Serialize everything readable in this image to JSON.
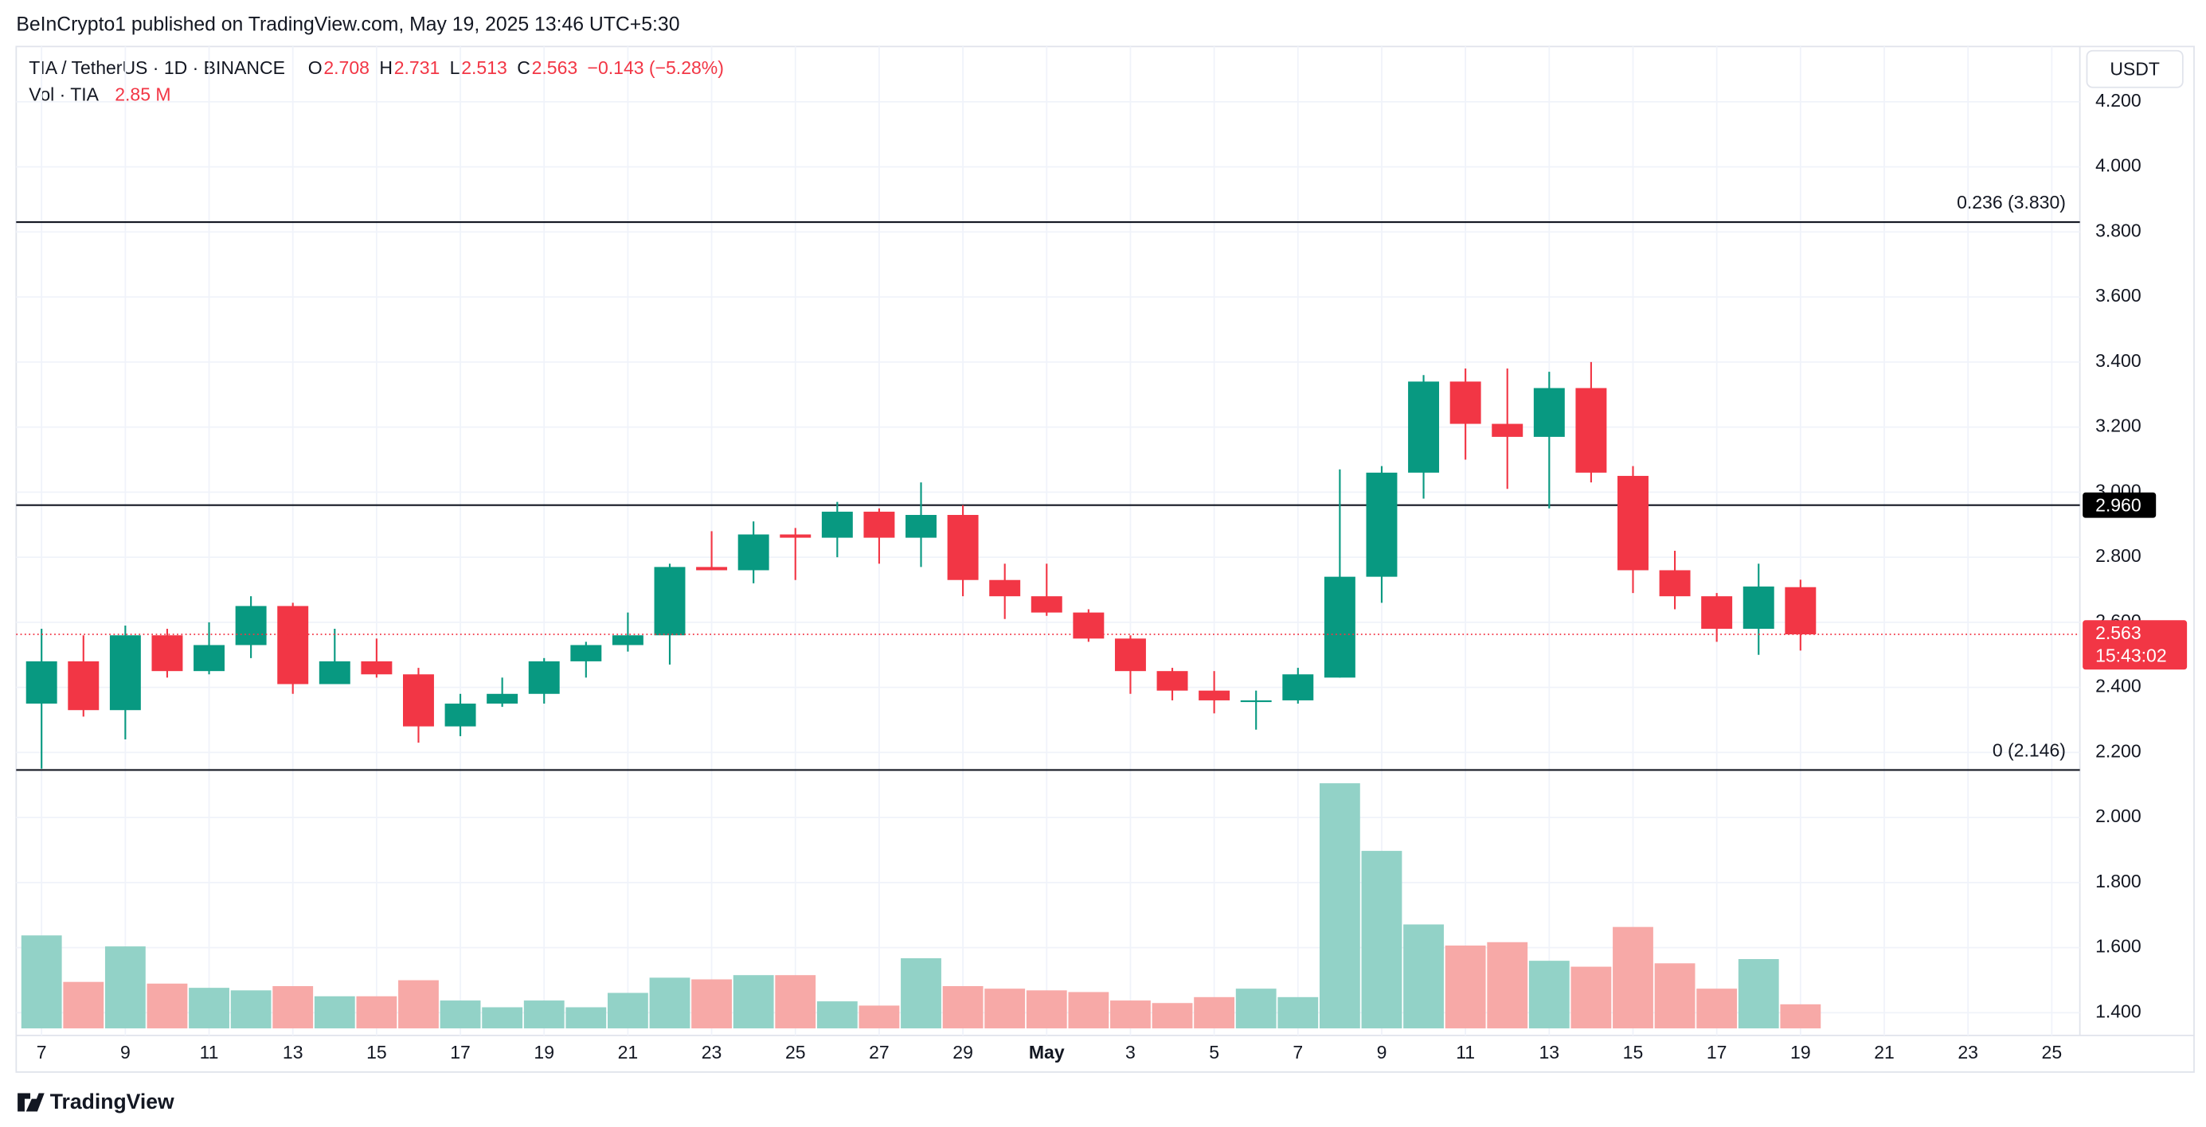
{
  "header": {
    "publisher": "BeInCrypto1 published on TradingView.com, May 19, 2025 13:46 UTC+5:30"
  },
  "footer": {
    "brand": "TradingView"
  },
  "chart_data": {
    "type": "candlestick",
    "symbol": "TIA / TetherUS · 1D · BINANCE",
    "legend": {
      "o": "O",
      "h": "H",
      "l": "L",
      "c": "C",
      "change": "−0.143 (−5.28%)",
      "vol": "Vol · TIA",
      "vol_label": "2.85 M"
    },
    "currency": "USDT",
    "up_color": "#089981",
    "down_color": "#f23645",
    "up_volume_color": "#92d2c7",
    "down_volume_color": "#f7a9a7",
    "categories": [
      "7",
      null,
      "9",
      null,
      "11",
      null,
      "13",
      null,
      "15",
      null,
      "17",
      null,
      "19",
      null,
      "21",
      null,
      "23",
      null,
      "25",
      null,
      "27",
      null,
      "29",
      null,
      "May",
      null,
      "3",
      null,
      "5",
      null,
      "7",
      null,
      "9",
      null,
      "11",
      null,
      "13",
      null,
      "15",
      null,
      "17",
      null,
      "19",
      null,
      "21",
      null,
      "23",
      null,
      "25"
    ],
    "open": [
      2.35,
      2.48,
      2.33,
      2.56,
      2.45,
      2.53,
      2.65,
      2.41,
      2.48,
      2.44,
      2.28,
      2.35,
      2.38,
      2.48,
      2.53,
      2.56,
      2.77,
      2.76,
      2.87,
      2.86,
      2.94,
      2.86,
      2.93,
      2.73,
      2.68,
      2.63,
      2.55,
      2.45,
      2.39,
      2.36,
      2.36,
      2.43,
      2.74,
      3.06,
      3.34,
      3.21,
      3.17,
      3.32,
      3.05,
      2.76,
      2.68,
      2.58,
      2.708,
      null,
      null,
      null,
      null,
      null,
      null
    ],
    "high": [
      2.58,
      2.56,
      2.59,
      2.58,
      2.6,
      2.68,
      2.66,
      2.58,
      2.55,
      2.46,
      2.38,
      2.43,
      2.49,
      2.54,
      2.63,
      2.78,
      2.88,
      2.91,
      2.89,
      2.97,
      2.95,
      3.03,
      2.96,
      2.78,
      2.78,
      2.64,
      2.56,
      2.46,
      2.45,
      2.39,
      2.46,
      3.07,
      3.08,
      3.36,
      3.38,
      3.38,
      3.37,
      3.4,
      3.08,
      2.82,
      2.69,
      2.78,
      2.731,
      null,
      null,
      null,
      null,
      null,
      null
    ],
    "low": [
      2.15,
      2.31,
      2.24,
      2.43,
      2.44,
      2.49,
      2.38,
      2.41,
      2.43,
      2.23,
      2.25,
      2.34,
      2.35,
      2.43,
      2.51,
      2.47,
      2.76,
      2.72,
      2.73,
      2.8,
      2.78,
      2.77,
      2.68,
      2.61,
      2.62,
      2.54,
      2.38,
      2.36,
      2.32,
      2.27,
      2.35,
      2.43,
      2.66,
      2.98,
      3.1,
      3.01,
      2.95,
      3.03,
      2.69,
      2.64,
      2.54,
      2.5,
      2.513,
      null,
      null,
      null,
      null,
      null,
      null
    ],
    "close": [
      2.48,
      2.33,
      2.56,
      2.45,
      2.53,
      2.65,
      2.41,
      2.48,
      2.44,
      2.28,
      2.35,
      2.38,
      2.48,
      2.53,
      2.56,
      2.77,
      2.76,
      2.87,
      2.86,
      2.94,
      2.86,
      2.93,
      2.73,
      2.68,
      2.63,
      2.55,
      2.45,
      2.39,
      2.36,
      2.36,
      2.44,
      2.74,
      3.06,
      3.34,
      3.21,
      3.17,
      3.32,
      3.06,
      2.76,
      2.68,
      2.58,
      2.71,
      2.563,
      null,
      null,
      null,
      null,
      null,
      null
    ],
    "volume": [
      11,
      5.5,
      9.7,
      5.3,
      4.8,
      4.5,
      5,
      3.8,
      3.8,
      5.7,
      3.3,
      2.5,
      3.3,
      2.5,
      4.2,
      6,
      5.8,
      6.3,
      6.3,
      3.2,
      2.7,
      8.3,
      5,
      4.7,
      4.5,
      4.3,
      3.3,
      3,
      3.7,
      4.7,
      3.7,
      29,
      21,
      12.3,
      9.8,
      10.2,
      8,
      7.3,
      12,
      7.7,
      4.7,
      8.2,
      2.85,
      null,
      null,
      null,
      null,
      null,
      null
    ],
    "ylim": [
      1.33,
      4.37
    ],
    "yticks": [
      {
        "value": 1.4,
        "label": "1.400"
      },
      {
        "value": 1.6,
        "label": "1.600"
      },
      {
        "value": 1.8,
        "label": "1.800"
      },
      {
        "value": 2.0,
        "label": "2.000"
      },
      {
        "value": 2.2,
        "label": "2.200"
      },
      {
        "value": 2.4,
        "label": "2.400"
      },
      {
        "value": 2.6,
        "label": "2.600"
      },
      {
        "value": 2.8,
        "label": "2.800"
      },
      {
        "value": 3.0,
        "label": "3.000"
      },
      {
        "value": 3.2,
        "label": "3.200"
      },
      {
        "value": 3.4,
        "label": "3.400"
      },
      {
        "value": 3.6,
        "label": "3.600"
      },
      {
        "value": 3.8,
        "label": "3.800"
      },
      {
        "value": 4.0,
        "label": "4.000"
      },
      {
        "value": 4.2,
        "label": "4.200"
      }
    ],
    "hlines": [
      {
        "value": 3.83,
        "label": "0.236 (3.830)",
        "style": "fib"
      },
      {
        "value": 2.96,
        "label": "2.960",
        "style": "tag"
      },
      {
        "value": 2.146,
        "label": "0 (2.146)",
        "style": "fib"
      }
    ],
    "countdown": "15:43:02",
    "grid": true
  }
}
